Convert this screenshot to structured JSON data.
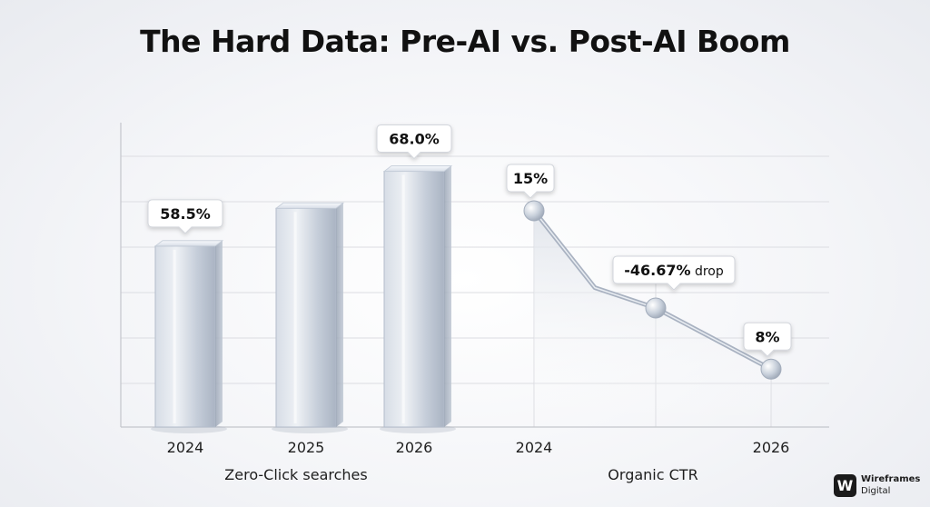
{
  "title": "The Hard Data: Pre-AI vs. Post-AI Boom",
  "brand": {
    "mark": "W",
    "line1": "Wireframes",
    "line2": "Digital"
  },
  "colors": {
    "bar": "#b9c3d1",
    "line": "#aab3c2",
    "grid": "#dcdde2",
    "text": "#111111"
  },
  "chart_data": [
    {
      "type": "bar",
      "xlabel": "Zero-Click searches",
      "categories": [
        "2024",
        "2025",
        "2026"
      ],
      "values": [
        58.5,
        null,
        68.0
      ],
      "data_labels": [
        "58.5%",
        "",
        "68.0%"
      ],
      "grid": true
    },
    {
      "type": "line",
      "xlabel": "Organic CTR",
      "x": [
        "2024",
        "2026"
      ],
      "points": [
        15,
        11.6,
        10.7,
        8
      ],
      "data_labels": [
        "15%",
        "",
        "",
        "8%"
      ],
      "annotation": {
        "value": "-46.67%",
        "suffix": "drop"
      },
      "grid": true
    }
  ]
}
